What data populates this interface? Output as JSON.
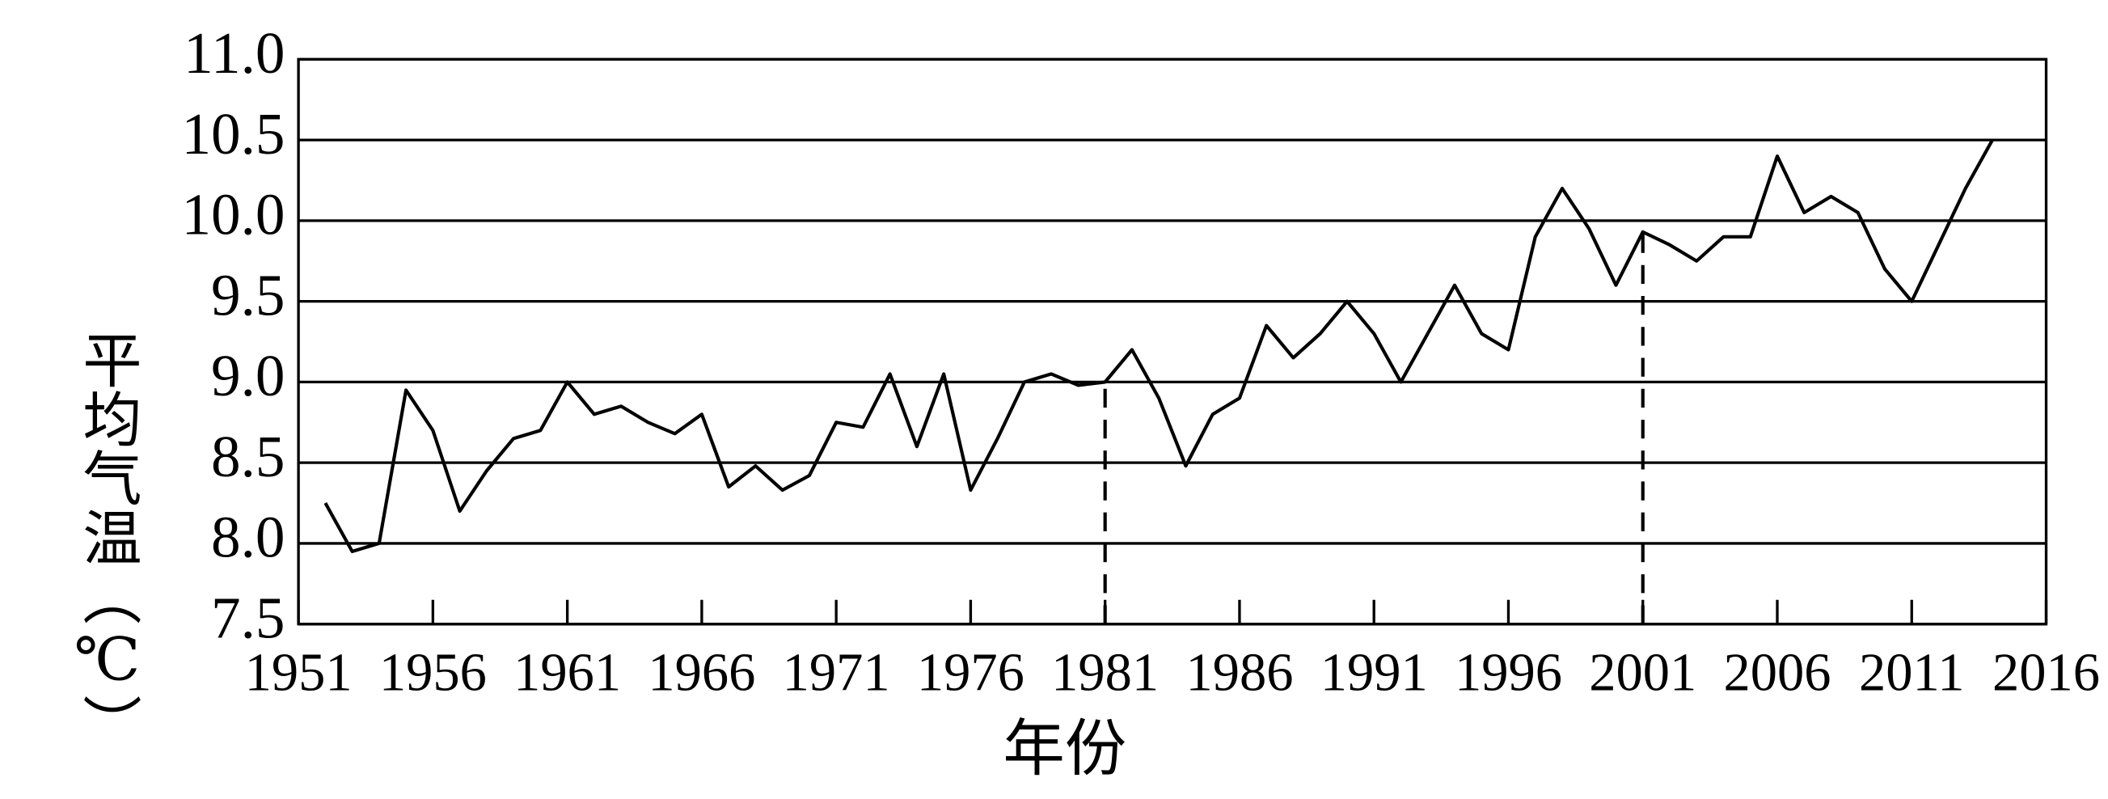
{
  "chart_data": {
    "type": "line",
    "x_label": "年份",
    "y_label": "平均气温（℃）",
    "x": [
      1952,
      1953,
      1954,
      1955,
      1956,
      1957,
      1958,
      1959,
      1960,
      1961,
      1962,
      1963,
      1964,
      1965,
      1966,
      1967,
      1968,
      1969,
      1970,
      1971,
      1972,
      1973,
      1974,
      1975,
      1976,
      1977,
      1978,
      1979,
      1980,
      1981,
      1982,
      1983,
      1984,
      1985,
      1986,
      1987,
      1988,
      1989,
      1990,
      1991,
      1992,
      1993,
      1994,
      1995,
      1996,
      1997,
      1998,
      1999,
      2000,
      2001,
      2002,
      2003,
      2004,
      2005,
      2006,
      2007,
      2008,
      2009,
      2010,
      2011,
      2012,
      2013,
      2014
    ],
    "series": [
      {
        "color": "#000000",
        "values": [
          8.25,
          7.95,
          8.0,
          8.95,
          8.7,
          8.2,
          8.45,
          8.65,
          8.7,
          9.0,
          8.8,
          8.85,
          8.75,
          8.68,
          8.8,
          8.35,
          8.48,
          8.33,
          8.42,
          8.75,
          8.72,
          9.05,
          8.6,
          9.05,
          8.33,
          8.65,
          9.0,
          9.05,
          8.98,
          9.0,
          9.2,
          8.9,
          8.48,
          8.8,
          8.9,
          9.35,
          9.15,
          9.3,
          9.5,
          9.3,
          9.0,
          9.3,
          9.6,
          9.3,
          9.2,
          9.9,
          10.2,
          9.95,
          9.6,
          9.93,
          9.85,
          9.75,
          9.9,
          9.9,
          10.4,
          10.05,
          10.15,
          10.05,
          9.7,
          9.5,
          9.85,
          10.2,
          10.5
        ]
      }
    ],
    "vlines": [
      1981,
      2001
    ],
    "xlim": [
      1951,
      2016
    ],
    "xticks": [
      1951,
      1956,
      1961,
      1966,
      1971,
      1976,
      1981,
      1986,
      1991,
      1996,
      2001,
      2006,
      2011,
      2016
    ],
    "ylim": [
      7.5,
      11.0
    ],
    "yticks": [
      7.5,
      {
        "value": 8,
        "label": "8.0"
      },
      8.5,
      {
        "value": 9,
        "label": "9.0"
      },
      9.5,
      {
        "value": 10,
        "label": "10.0"
      },
      10.5,
      {
        "value": 11,
        "label": "11.0"
      }
    ],
    "grid": true
  }
}
